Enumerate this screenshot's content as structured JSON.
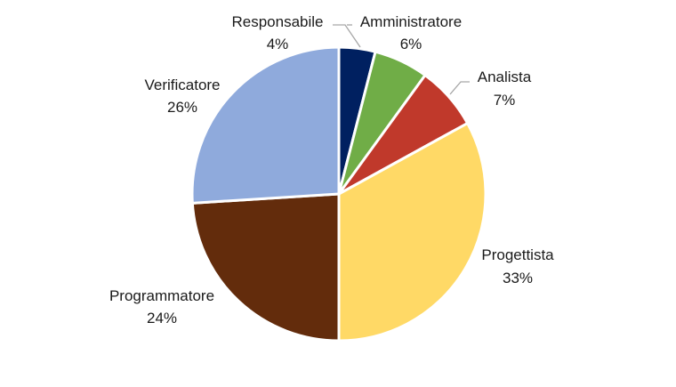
{
  "chart_data": {
    "type": "pie",
    "title": "",
    "legend": "none",
    "slices": [
      {
        "label": "Responsabile",
        "percent_label": "4%",
        "value": 4,
        "color": "#002060"
      },
      {
        "label": "Amministratore",
        "percent_label": "6%",
        "value": 6,
        "color": "#70ad47"
      },
      {
        "label": "Analista",
        "percent_label": "7%",
        "value": 7,
        "color": "#c0392b"
      },
      {
        "label": "Progettista",
        "percent_label": "33%",
        "value": 33,
        "color": "#ffd966"
      },
      {
        "label": "Programmatore",
        "percent_label": "24%",
        "value": 24,
        "color": "#632c0c"
      },
      {
        "label": "Verificatore",
        "percent_label": "26%",
        "value": 26,
        "color": "#8faadc"
      }
    ]
  }
}
